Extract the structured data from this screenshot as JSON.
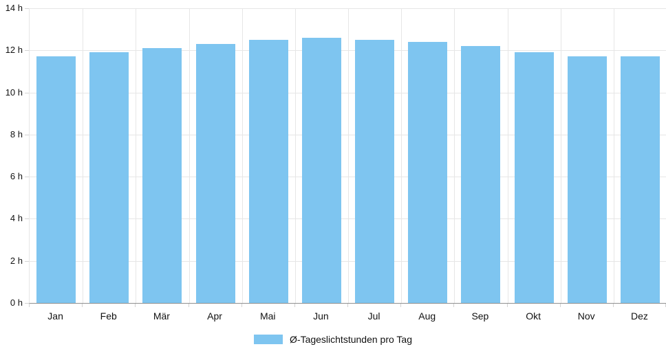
{
  "chart_data": {
    "type": "bar",
    "categories": [
      "Jan",
      "Feb",
      "Mär",
      "Apr",
      "Mai",
      "Jun",
      "Jul",
      "Aug",
      "Sep",
      "Okt",
      "Nov",
      "Dez"
    ],
    "values": [
      11.7,
      11.9,
      12.1,
      12.3,
      12.5,
      12.6,
      12.5,
      12.4,
      12.2,
      11.9,
      11.7,
      11.7
    ],
    "series_name": "Ø-Tageslichtstunden pro Tag",
    "title": "",
    "xlabel": "",
    "ylabel": "",
    "ylim": [
      0,
      14
    ],
    "ytick_step": 2,
    "ytick_labels": [
      "0 h",
      "2 h",
      "4 h",
      "6 h",
      "8 h",
      "10 h",
      "12 h",
      "14 h"
    ],
    "grid": true,
    "legend_position": "bottom-center",
    "legend": {
      "label": "Ø-Tageslichtstunden pro Tag"
    },
    "colors": {
      "bar": "#7EC5F0",
      "grid": "#e6e6e6",
      "axis_line": "#8f8f8f",
      "tick": "#d2d2d2",
      "text": "#111111"
    }
  }
}
